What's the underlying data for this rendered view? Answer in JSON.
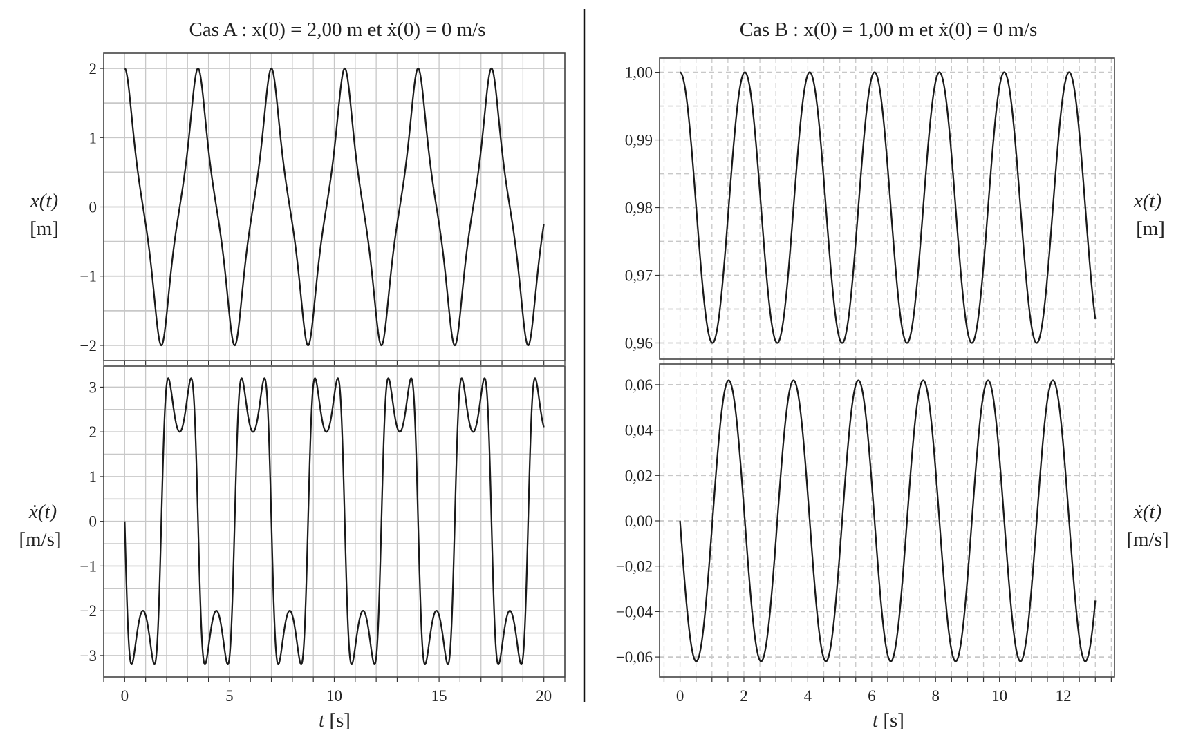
{
  "chart_data": [
    {
      "type": "line",
      "panel": "A-top",
      "title": "Cas A : x(0) = 2,00 m et ẋ(0) = 0 m/s",
      "ylabel": "x(t)",
      "yunit": "[m]",
      "xlabel": "",
      "xlim": [
        -1,
        21
      ],
      "ylim": [
        -2.22,
        2.22
      ],
      "yticks": [
        2,
        1,
        0,
        -1,
        -2
      ],
      "ytick_labels": [
        "2",
        "1",
        "0",
        "−1",
        "−2"
      ],
      "xgrid_step": 1,
      "ygrid_step": 0.5,
      "grid": "solid",
      "series": [
        {
          "name": "x(t)",
          "model": "duffing",
          "var": "x",
          "x0": 2.0,
          "v0": 0,
          "a": 7.12,
          "b": 4.06,
          "period": 3.5,
          "t_range": [
            0,
            20
          ],
          "peaks": 2.0,
          "troughs": -2.0
        }
      ]
    },
    {
      "type": "line",
      "panel": "A-bottom",
      "ylabel": "ẋ(t)",
      "yunit": "[m/s]",
      "xlabel": "t [s]",
      "xlim": [
        -1,
        21
      ],
      "ylim": [
        -3.48,
        3.47
      ],
      "xticks": [
        0,
        5,
        10,
        15,
        20
      ],
      "xtick_labels": [
        "0",
        "5",
        "10",
        "15",
        "20"
      ],
      "yticks": [
        3,
        2,
        1,
        0,
        -1,
        -2,
        -3
      ],
      "ytick_labels": [
        "3",
        "2",
        "1",
        "0",
        "−1",
        "−2",
        "−3"
      ],
      "xgrid_step": 1,
      "ygrid_step": 0.5,
      "grid": "solid",
      "series": [
        {
          "name": "ẋ(t)",
          "model": "duffing",
          "var": "v",
          "x0": 2.0,
          "v0": 0,
          "a": 7.12,
          "b": 4.06,
          "period": 3.5,
          "t_range": [
            0,
            20
          ],
          "max": 3.2,
          "local_dip": 2.0,
          "min": -3.2
        }
      ]
    },
    {
      "type": "line",
      "panel": "B-top",
      "title": "Cas B : x(0) = 1,00 m et ẋ(0) = 0 m/s",
      "ylabel": "x(t)",
      "yunit": "[m]",
      "xlabel": "",
      "xlim": [
        -0.64,
        13.6
      ],
      "ylim": [
        0.9576,
        1.0021
      ],
      "yticks": [
        1.0,
        0.99,
        0.98,
        0.97,
        0.96
      ],
      "ytick_labels": [
        "1,00",
        "0,99",
        "0,98",
        "0,97",
        "0,96"
      ],
      "xgrid_step": 0.5,
      "ygrid_step": 0.005,
      "grid": "dashed",
      "series": [
        {
          "name": "x(t)",
          "model": "harmonic",
          "var": "x",
          "center": 0.98,
          "amplitude": 0.02,
          "period": 2.03,
          "t_range": [
            0,
            13
          ]
        }
      ]
    },
    {
      "type": "line",
      "panel": "B-bottom",
      "ylabel": "ẋ(t)",
      "yunit": "[m/s]",
      "xlabel": "t [s]",
      "xlim": [
        -0.64,
        13.6
      ],
      "ylim": [
        -0.0688,
        0.0691
      ],
      "xticks": [
        0,
        2,
        4,
        6,
        8,
        10,
        12
      ],
      "xtick_labels": [
        "0",
        "2",
        "4",
        "6",
        "8",
        "10",
        "12"
      ],
      "yticks": [
        0.06,
        0.04,
        0.02,
        0.0,
        -0.02,
        -0.04,
        -0.06
      ],
      "ytick_labels": [
        "0,06",
        "0,04",
        "0,02",
        "0,00",
        "−0,02",
        "−0,04",
        "−0,06"
      ],
      "xgrid_step": 0.5,
      "ygrid_step": 0.02,
      "grid": "dashed",
      "series": [
        {
          "name": "ẋ(t)",
          "model": "harmonic",
          "var": "v",
          "center": 0.98,
          "amplitude": 0.02,
          "period": 2.03,
          "t_range": [
            0,
            13
          ],
          "max": 0.062,
          "min": -0.062
        }
      ]
    }
  ],
  "labels": {
    "title_a": "Cas A : x(0) = 2,00 m et ẋ(0) = 0 m/s",
    "title_b": "Cas B : x(0) = 1,00 m et ẋ(0) = 0 m/s",
    "x_sym": "x(t)",
    "x_unit": "[m]",
    "v_sym": "ẋ(t)",
    "v_unit": "[m/s]",
    "t_sym": "t",
    "t_unit": "[s]"
  },
  "colors": {
    "line": "#1a1a1a",
    "grid": "#c8c8c8",
    "frame": "#444444"
  }
}
